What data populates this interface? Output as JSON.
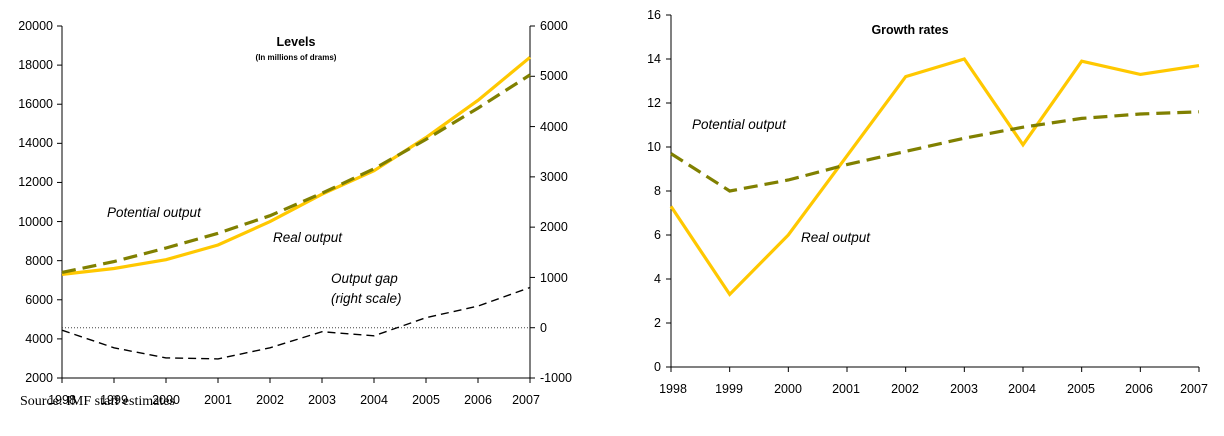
{
  "source_note": "Source: IMF staff estimates",
  "colors": {
    "real": "#FFC800",
    "potential": "#808000",
    "gap": "#000000",
    "axis": "#000000"
  },
  "chart_data": [
    {
      "type": "line",
      "title": "Levels",
      "subtitle": "(In millions of drams)",
      "x": [
        1998,
        1999,
        2000,
        2001,
        2002,
        2003,
        2004,
        2005,
        2006,
        2007
      ],
      "x_tick_labels": [
        "1998",
        "1999",
        "2000",
        "2001",
        "2002",
        "2003",
        "2004",
        "2005",
        "2006",
        "2007"
      ],
      "y_left_ticks": [
        "20000",
        "18000",
        "16000",
        "14000",
        "12000",
        "10000",
        "8000",
        "6000",
        "4000",
        "2000"
      ],
      "y_right_ticks": [
        "6000",
        "5000",
        "4000",
        "3000",
        "2000",
        "1000",
        "0",
        "-1000"
      ],
      "ylim_left": [
        2000,
        20000
      ],
      "ylim_right": [
        -1000,
        6000
      ],
      "grid": false,
      "series": [
        {
          "name": "Real output",
          "label": "Real output",
          "axis": "left",
          "style": "solid",
          "color": "#FFC800",
          "values": [
            7300,
            7600,
            8050,
            8800,
            10000,
            11400,
            12600,
            14300,
            16200,
            18400
          ]
        },
        {
          "name": "Potential output",
          "label": "Potential output",
          "axis": "left",
          "style": "dashed",
          "color": "#808000",
          "values": [
            7400,
            7950,
            8650,
            9400,
            10300,
            11450,
            12700,
            14200,
            15800,
            17500
          ]
        },
        {
          "name": "Output gap",
          "label_line1": "Output gap",
          "label_line2": "(right scale)",
          "axis": "right",
          "style": "dashed",
          "color": "#000000",
          "values": [
            -50,
            -400,
            -600,
            -620,
            -400,
            -80,
            -160,
            200,
            430,
            800
          ]
        }
      ],
      "reference_line": {
        "axis": "right",
        "value": 0,
        "style": "dotted"
      }
    },
    {
      "type": "line",
      "title": "Growth rates",
      "x": [
        1998,
        1999,
        2000,
        2001,
        2002,
        2003,
        2004,
        2005,
        2006,
        2007
      ],
      "x_tick_labels": [
        "1998",
        "1999",
        "2000",
        "2001",
        "2002",
        "2003",
        "2004",
        "2005",
        "2006",
        "2007"
      ],
      "y_ticks": [
        "16",
        "14",
        "12",
        "10",
        "8",
        "6",
        "4",
        "2",
        "0"
      ],
      "ylim": [
        0,
        16
      ],
      "grid": false,
      "series": [
        {
          "name": "Real output",
          "label": "Real output",
          "style": "solid",
          "color": "#FFC800",
          "values": [
            7.3,
            3.3,
            6.0,
            9.6,
            13.2,
            14.0,
            10.1,
            13.9,
            13.3,
            13.7
          ]
        },
        {
          "name": "Potential output",
          "label": "Potential output",
          "style": "dashed",
          "color": "#808000",
          "values": [
            9.7,
            8.0,
            8.5,
            9.2,
            9.8,
            10.4,
            10.9,
            11.3,
            11.5,
            11.6
          ]
        }
      ]
    }
  ]
}
